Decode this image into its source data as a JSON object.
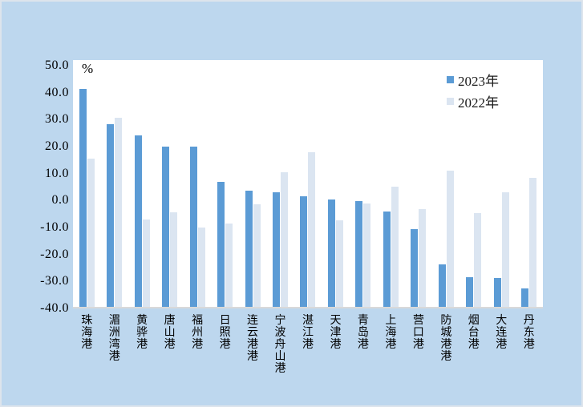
{
  "frame": {
    "background_color": "#bdd7ee",
    "plot_background_color": "#ffffff",
    "axis_line_color": "#d9d9d9",
    "text_color": "#000000"
  },
  "chart_data": {
    "type": "bar",
    "title": "",
    "unit_label": "%",
    "categories": [
      "珠海港",
      "湄洲湾港",
      "黄骅港",
      "唐山港",
      "福州港",
      "日照港",
      "连云港港",
      "宁波舟山港",
      "湛江港",
      "天津港",
      "青岛港",
      "上海港",
      "营口港",
      "防城港港",
      "烟台港",
      "大连港",
      "丹东港"
    ],
    "series": [
      {
        "name": "2023年",
        "color": "#5b9bd5",
        "values": [
          41.5,
          28.4,
          24.1,
          20.1,
          20.1,
          7.0,
          3.7,
          3.0,
          1.5,
          0.5,
          -0.3,
          -4.0,
          -10.6,
          -23.6,
          -28.5,
          -28.7,
          -32.6
        ]
      },
      {
        "name": "2022年",
        "color": "#dbe5f1",
        "values": [
          15.5,
          30.7,
          -7.0,
          -4.3,
          -10.0,
          -8.6,
          -1.4,
          10.6,
          17.9,
          -7.4,
          -1.0,
          5.2,
          -3.2,
          11.1,
          -4.7,
          3.2,
          8.4
        ]
      }
    ],
    "ylim": [
      -40,
      50
    ],
    "ytick_interval": 10,
    "ytick_labels": [
      "50.0",
      "40.0",
      "30.0",
      "20.0",
      "10.0",
      "0.0",
      "-10.0",
      "-20.0",
      "-30.0",
      "-40.0"
    ],
    "bar_baseline": -40,
    "grid": false,
    "legend_position": "top-right",
    "xlabel_orientation": "vertical"
  }
}
